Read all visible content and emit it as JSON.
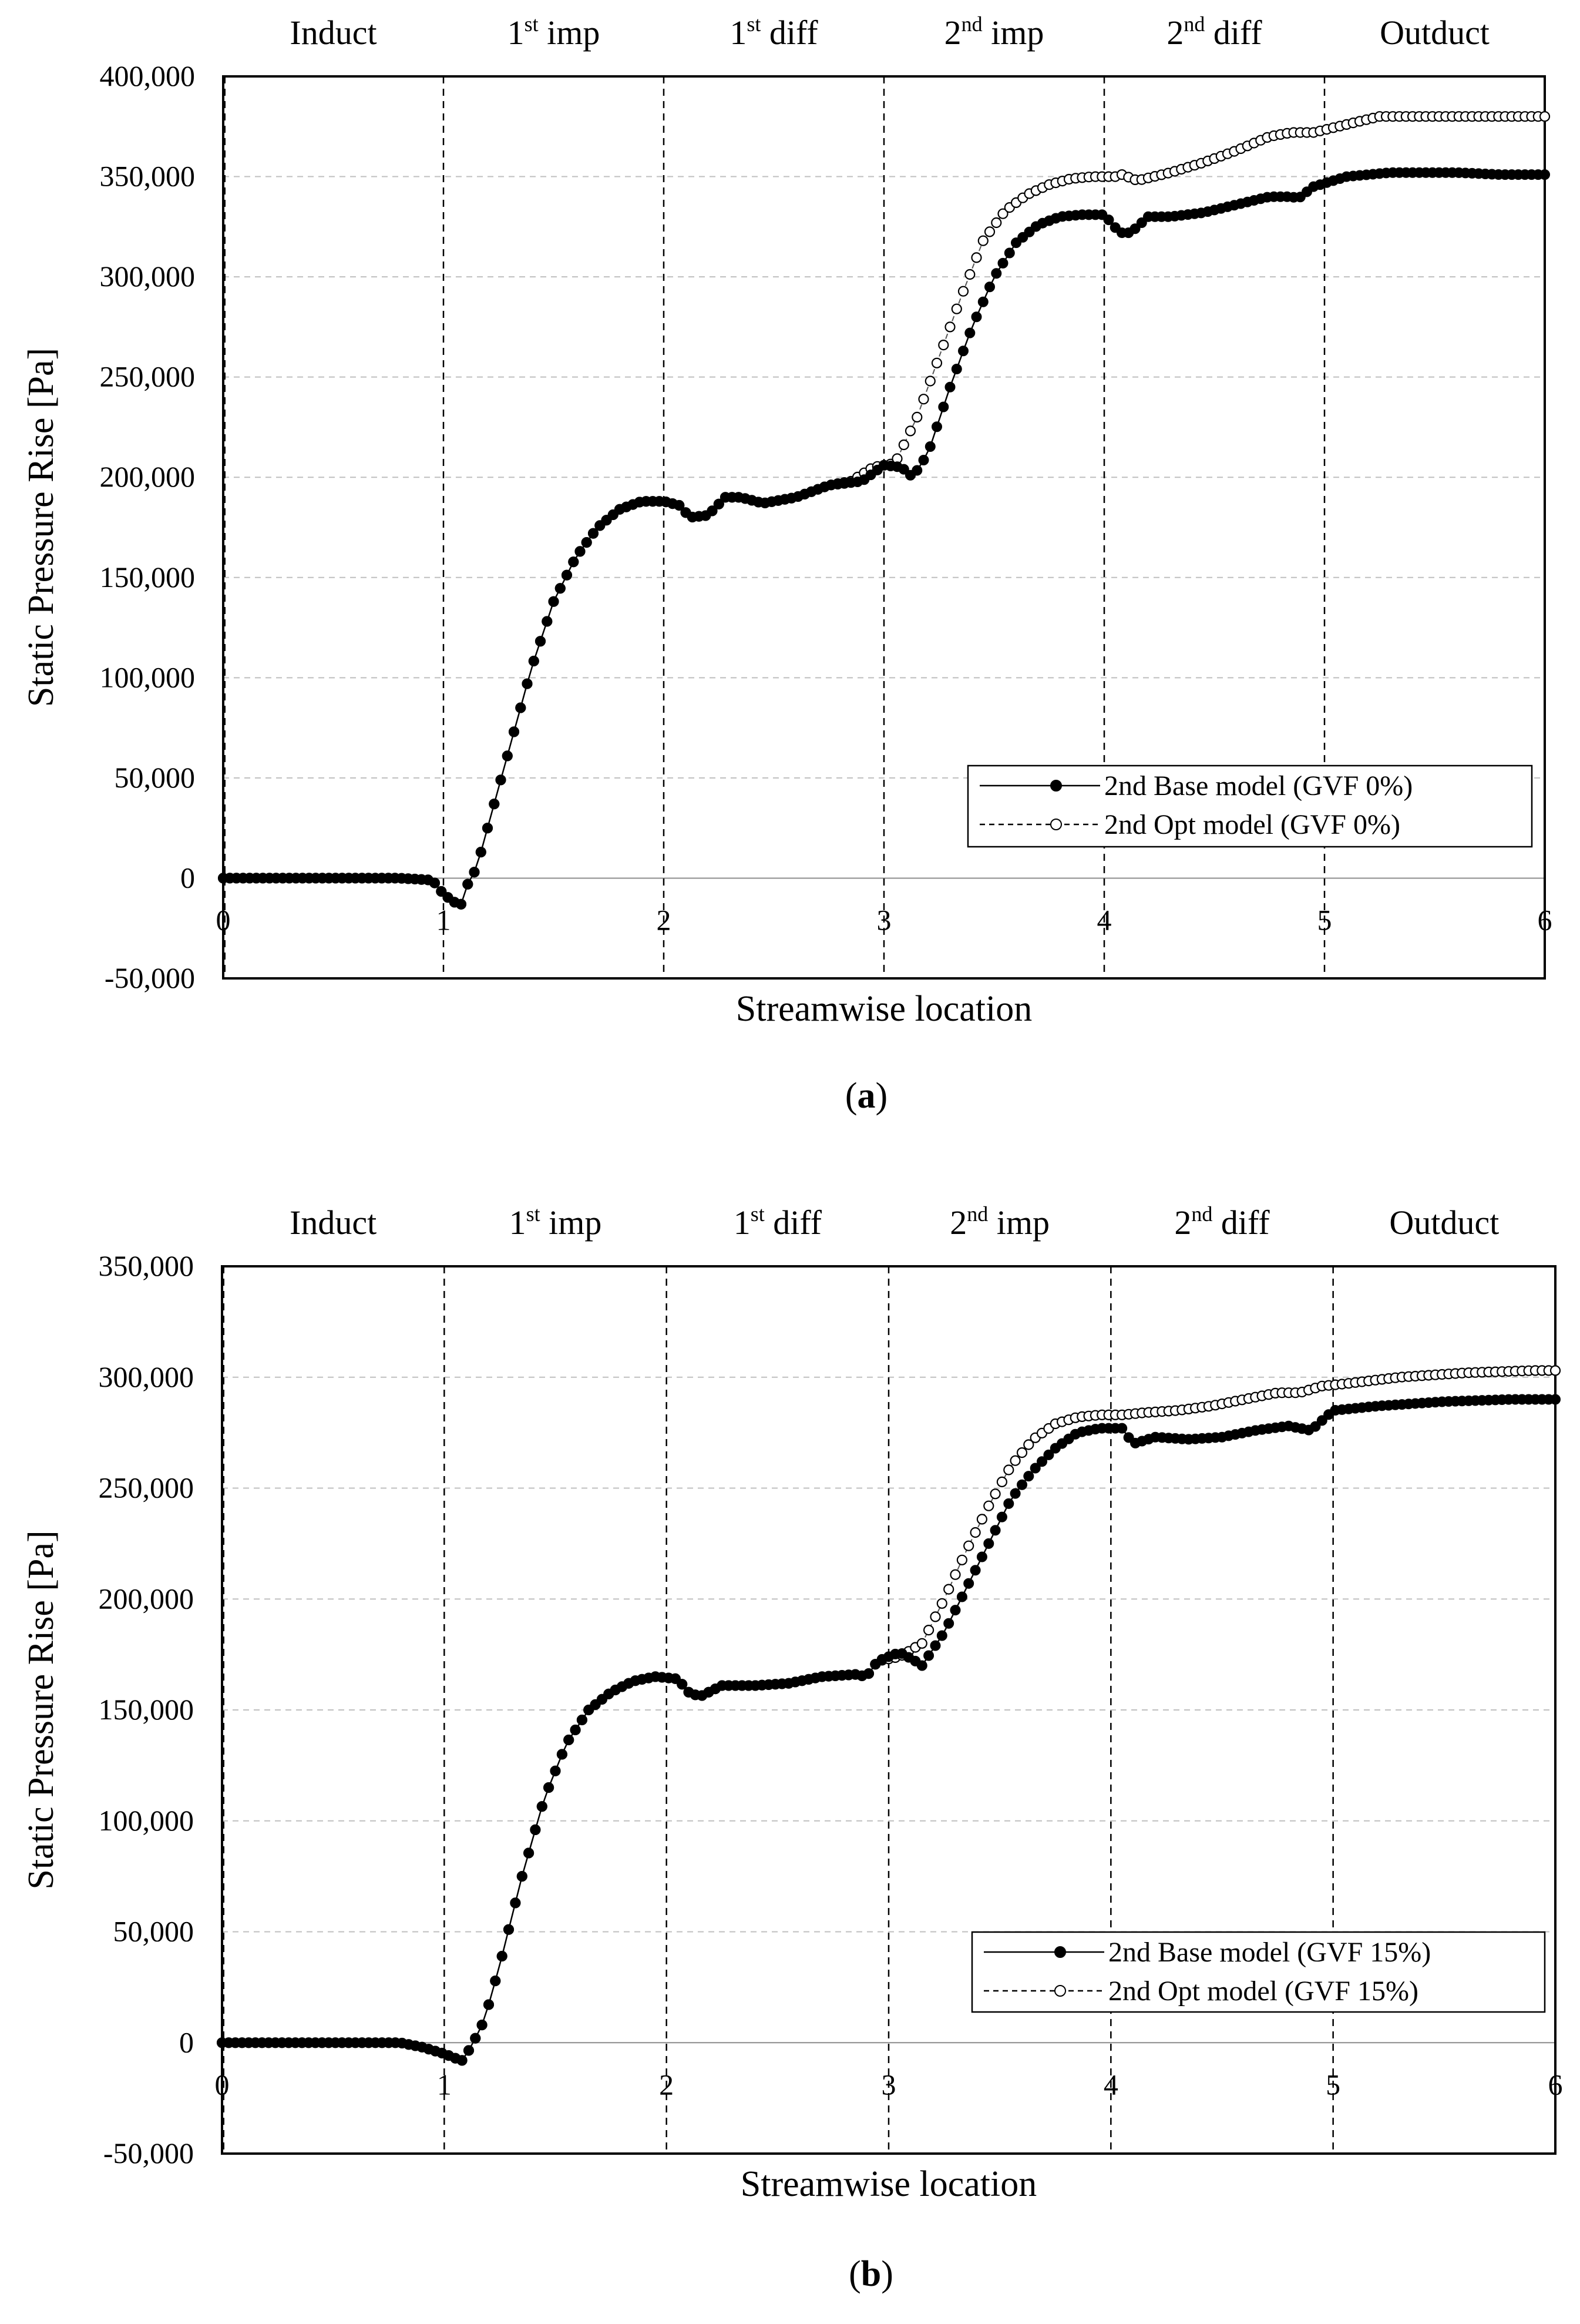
{
  "chart_data": [
    {
      "type": "line",
      "caption_letter": "a",
      "xlabel": "Streamwise location",
      "ylabel": "Static Pressure Rise [Pa]",
      "xlim": [
        0,
        6
      ],
      "ylim": [
        -50000,
        400000
      ],
      "yticks": [
        -50000,
        0,
        50000,
        100000,
        150000,
        200000,
        250000,
        300000,
        350000,
        400000
      ],
      "ytick_labels": [
        "-50,000",
        "0",
        "50,000",
        "100,000",
        "150,000",
        "200,000",
        "250,000",
        "300,000",
        "350,000",
        "400,000"
      ],
      "xticks": [
        0,
        1,
        2,
        3,
        4,
        5,
        6
      ],
      "xtick_labels": [
        "0",
        "1",
        "2",
        "3",
        "4",
        "5",
        "6"
      ],
      "regions": [
        {
          "base": "Induct",
          "sup": ""
        },
        {
          "base": "1",
          "sup": "st",
          "rest": " imp"
        },
        {
          "base": "1",
          "sup": "st",
          "rest": " diff"
        },
        {
          "base": "2",
          "sup": "nd",
          "rest": " imp"
        },
        {
          "base": "2",
          "sup": "nd",
          "rest": " diff"
        },
        {
          "base": "Outduct",
          "sup": ""
        }
      ],
      "series": [
        {
          "name": "2nd Base model (GVF 0%)",
          "style": "solid-filled",
          "points": [
            [
              0,
              0
            ],
            [
              0.8,
              0
            ],
            [
              0.95,
              -1000
            ],
            [
              1.0,
              -8000
            ],
            [
              1.05,
              -12000
            ],
            [
              1.08,
              -13000
            ],
            [
              1.1,
              -5000
            ],
            [
              1.15,
              5000
            ],
            [
              1.2,
              25000
            ],
            [
              1.3,
              65000
            ],
            [
              1.4,
              105000
            ],
            [
              1.5,
              138000
            ],
            [
              1.6,
              160000
            ],
            [
              1.7,
              175000
            ],
            [
              1.8,
              184000
            ],
            [
              1.9,
              188000
            ],
            [
              2.0,
              188000
            ],
            [
              2.07,
              186000
            ],
            [
              2.12,
              180000
            ],
            [
              2.2,
              181000
            ],
            [
              2.28,
              190000
            ],
            [
              2.35,
              190000
            ],
            [
              2.45,
              187000
            ],
            [
              2.6,
              190000
            ],
            [
              2.75,
              196000
            ],
            [
              2.9,
              198000
            ],
            [
              3.0,
              206000
            ],
            [
              3.08,
              205000
            ],
            [
              3.13,
              200000
            ],
            [
              3.2,
              212000
            ],
            [
              3.3,
              245000
            ],
            [
              3.4,
              275000
            ],
            [
              3.5,
              300000
            ],
            [
              3.6,
              317000
            ],
            [
              3.7,
              326000
            ],
            [
              3.8,
              330000
            ],
            [
              3.9,
              331000
            ],
            [
              4.0,
              331000
            ],
            [
              4.07,
              322000
            ],
            [
              4.12,
              322000
            ],
            [
              4.2,
              330000
            ],
            [
              4.3,
              330000
            ],
            [
              4.45,
              332000
            ],
            [
              4.6,
              336000
            ],
            [
              4.75,
              340000
            ],
            [
              4.85,
              340000
            ],
            [
              4.88,
              339000
            ],
            [
              4.95,
              345000
            ],
            [
              5.1,
              350000
            ],
            [
              5.3,
              352000
            ],
            [
              5.6,
              352000
            ],
            [
              5.8,
              351000
            ],
            [
              6.0,
              351000
            ]
          ]
        },
        {
          "name": "2nd Opt model (GVF 0%)",
          "style": "dashed-open",
          "points": [
            [
              0,
              0
            ],
            [
              0.8,
              0
            ],
            [
              0.95,
              -1000
            ],
            [
              1.0,
              -8000
            ],
            [
              1.05,
              -12000
            ],
            [
              1.08,
              -13000
            ],
            [
              1.1,
              -5000
            ],
            [
              1.15,
              5000
            ],
            [
              1.2,
              25000
            ],
            [
              1.3,
              65000
            ],
            [
              1.4,
              105000
            ],
            [
              1.5,
              138000
            ],
            [
              1.6,
              160000
            ],
            [
              1.7,
              175000
            ],
            [
              1.8,
              184000
            ],
            [
              1.9,
              188000
            ],
            [
              2.0,
              188000
            ],
            [
              2.07,
              186000
            ],
            [
              2.12,
              180000
            ],
            [
              2.2,
              181000
            ],
            [
              2.28,
              190000
            ],
            [
              2.35,
              190000
            ],
            [
              2.45,
              187000
            ],
            [
              2.6,
              190000
            ],
            [
              2.75,
              196000
            ],
            [
              2.85,
              198000
            ],
            [
              2.95,
              205000
            ],
            [
              3.05,
              207000
            ],
            [
              3.15,
              230000
            ],
            [
              3.25,
              260000
            ],
            [
              3.35,
              290000
            ],
            [
              3.45,
              318000
            ],
            [
              3.55,
              333000
            ],
            [
              3.65,
              341000
            ],
            [
              3.75,
              346000
            ],
            [
              3.85,
              349000
            ],
            [
              3.95,
              350000
            ],
            [
              4.05,
              350000
            ],
            [
              4.08,
              351000
            ],
            [
              4.15,
              348000
            ],
            [
              4.3,
              352000
            ],
            [
              4.45,
              357000
            ],
            [
              4.6,
              363000
            ],
            [
              4.75,
              370000
            ],
            [
              4.85,
              372000
            ],
            [
              4.95,
              372000
            ],
            [
              5.1,
              376000
            ],
            [
              5.25,
              380000
            ],
            [
              5.5,
              380000
            ],
            [
              5.8,
              380000
            ],
            [
              6.0,
              380000
            ]
          ]
        }
      ]
    },
    {
      "type": "line",
      "caption_letter": "b",
      "xlabel": "Streamwise location",
      "ylabel": "Static Pressure Rise [Pa]",
      "xlim": [
        0,
        6
      ],
      "ylim": [
        -50000,
        350000
      ],
      "yticks": [
        -50000,
        0,
        50000,
        100000,
        150000,
        200000,
        250000,
        300000,
        350000
      ],
      "ytick_labels": [
        "-50,000",
        "0",
        "50,000",
        "100,000",
        "150,000",
        "200,000",
        "250,000",
        "300,000",
        "350,000"
      ],
      "xticks": [
        0,
        1,
        2,
        3,
        4,
        5,
        6
      ],
      "xtick_labels": [
        "0",
        "1",
        "2",
        "3",
        "4",
        "5",
        "6"
      ],
      "regions": [
        {
          "base": "Induct",
          "sup": ""
        },
        {
          "base": "1",
          "sup": "st",
          "rest": " imp"
        },
        {
          "base": "1",
          "sup": "st",
          "rest": " diff"
        },
        {
          "base": "2",
          "sup": "nd",
          "rest": " imp"
        },
        {
          "base": "2",
          "sup": "nd",
          "rest": " diff"
        },
        {
          "base": "Outduct",
          "sup": ""
        }
      ],
      "series": [
        {
          "name": "2nd Base model (GVF 15%)",
          "style": "solid-filled",
          "points": [
            [
              0,
              0
            ],
            [
              0.8,
              0
            ],
            [
              0.9,
              -2000
            ],
            [
              1.0,
              -5000
            ],
            [
              1.05,
              -7000
            ],
            [
              1.08,
              -8000
            ],
            [
              1.12,
              -2000
            ],
            [
              1.18,
              10000
            ],
            [
              1.25,
              35000
            ],
            [
              1.35,
              75000
            ],
            [
              1.45,
              110000
            ],
            [
              1.55,
              135000
            ],
            [
              1.65,
              150000
            ],
            [
              1.75,
              158000
            ],
            [
              1.85,
              163000
            ],
            [
              1.95,
              165000
            ],
            [
              2.05,
              164000
            ],
            [
              2.1,
              158000
            ],
            [
              2.15,
              156000
            ],
            [
              2.25,
              161000
            ],
            [
              2.4,
              161000
            ],
            [
              2.55,
              162000
            ],
            [
              2.7,
              165000
            ],
            [
              2.85,
              166000
            ],
            [
              2.9,
              165000
            ],
            [
              2.95,
              172000
            ],
            [
              3.05,
              176000
            ],
            [
              3.12,
              172000
            ],
            [
              3.15,
              170000
            ],
            [
              3.25,
              185000
            ],
            [
              3.35,
              205000
            ],
            [
              3.45,
              225000
            ],
            [
              3.55,
              245000
            ],
            [
              3.65,
              258000
            ],
            [
              3.75,
              268000
            ],
            [
              3.85,
              275000
            ],
            [
              3.95,
              277000
            ],
            [
              4.05,
              277000
            ],
            [
              4.1,
              270000
            ],
            [
              4.2,
              273000
            ],
            [
              4.35,
              272000
            ],
            [
              4.5,
              273000
            ],
            [
              4.65,
              276000
            ],
            [
              4.8,
              278000
            ],
            [
              4.9,
              276000
            ],
            [
              5.0,
              285000
            ],
            [
              5.2,
              287000
            ],
            [
              5.5,
              289000
            ],
            [
              5.8,
              290000
            ],
            [
              6.0,
              290000
            ]
          ]
        },
        {
          "name": "2nd Opt model (GVF 15%)",
          "style": "dashed-open",
          "points": [
            [
              0,
              0
            ],
            [
              0.8,
              0
            ],
            [
              0.9,
              -2000
            ],
            [
              1.0,
              -5000
            ],
            [
              1.05,
              -7000
            ],
            [
              1.08,
              -8000
            ],
            [
              1.12,
              -2000
            ],
            [
              1.18,
              10000
            ],
            [
              1.25,
              35000
            ],
            [
              1.35,
              75000
            ],
            [
              1.45,
              110000
            ],
            [
              1.55,
              135000
            ],
            [
              1.65,
              150000
            ],
            [
              1.75,
              158000
            ],
            [
              1.85,
              163000
            ],
            [
              1.95,
              165000
            ],
            [
              2.05,
              164000
            ],
            [
              2.1,
              158000
            ],
            [
              2.15,
              156000
            ],
            [
              2.25,
              161000
            ],
            [
              2.4,
              161000
            ],
            [
              2.55,
              162000
            ],
            [
              2.7,
              165000
            ],
            [
              2.85,
              166000
            ],
            [
              2.9,
              165000
            ],
            [
              2.95,
              172000
            ],
            [
              3.05,
              174000
            ],
            [
              3.15,
              180000
            ],
            [
              3.25,
              200000
            ],
            [
              3.35,
              222000
            ],
            [
              3.45,
              242000
            ],
            [
              3.55,
              260000
            ],
            [
              3.65,
              272000
            ],
            [
              3.75,
              279000
            ],
            [
              3.85,
              282000
            ],
            [
              3.95,
              283000
            ],
            [
              4.05,
              283000
            ],
            [
              4.15,
              284000
            ],
            [
              4.3,
              285000
            ],
            [
              4.45,
              287000
            ],
            [
              4.6,
              290000
            ],
            [
              4.75,
              293000
            ],
            [
              4.85,
              293000
            ],
            [
              4.95,
              296000
            ],
            [
              5.05,
              297000
            ],
            [
              5.3,
              300000
            ],
            [
              5.6,
              302000
            ],
            [
              5.9,
              303000
            ],
            [
              6.0,
              303000
            ]
          ]
        }
      ]
    }
  ]
}
